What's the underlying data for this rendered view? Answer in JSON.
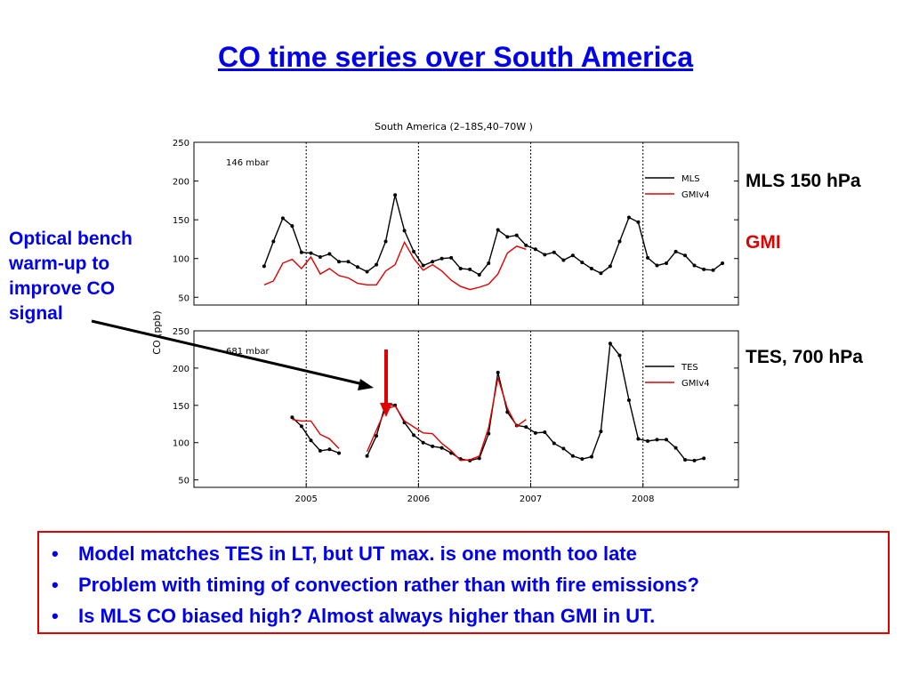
{
  "slide": {
    "title": "CO time series over South America",
    "annotation": "Optical bench warm-up to improve CO signal",
    "labels": {
      "mls": "MLS 150 hPa",
      "gmi": "GMI",
      "tes": "TES, 700 hPa"
    },
    "bullets": [
      "Model matches TES in LT, but UT max. is one month too late",
      "Problem with timing of convection rather than with fire emissions?",
      "Is MLS CO biased high?  Almost always higher than GMI in UT."
    ],
    "colors": {
      "title": "#0000ee",
      "gmi_label": "#e00000",
      "box_border": "#e00000",
      "mls_tes_line": "#000000",
      "gmi_line": "#e00000",
      "arrow_red": "#e00000"
    }
  },
  "chart_data": [
    {
      "type": "line",
      "title": "South America (2–18S,40–70W )",
      "panel_label": "146 mbar",
      "ylabel": "CO (ppb)",
      "ylim": [
        40,
        250
      ],
      "yticks": [
        50,
        100,
        150,
        200,
        250
      ],
      "xlim": [
        2004.0,
        2008.85
      ],
      "xticks": [
        2005,
        2006,
        2007,
        2008
      ],
      "vlines": [
        2005,
        2006,
        2007,
        2008
      ],
      "legend": "top-right",
      "series": [
        {
          "name": "MLS",
          "color": "#000000",
          "markers": true,
          "x": [
            2004.625,
            2004.708,
            2004.792,
            2004.875,
            2004.958,
            2005.042,
            2005.125,
            2005.208,
            2005.292,
            2005.375,
            2005.458,
            2005.542,
            2005.625,
            2005.708,
            2005.792,
            2005.875,
            2005.958,
            2006.042,
            2006.125,
            2006.208,
            2006.292,
            2006.375,
            2006.458,
            2006.542,
            2006.625,
            2006.708,
            2006.792,
            2006.875,
            2006.958,
            2007.042,
            2007.125,
            2007.208,
            2007.292,
            2007.375,
            2007.458,
            2007.542,
            2007.625,
            2007.708,
            2007.792,
            2007.875,
            2007.958,
            2008.042,
            2008.125,
            2008.208,
            2008.292,
            2008.375,
            2008.458,
            2008.542,
            2008.625,
            2008.708
          ],
          "y": [
            90,
            122,
            152,
            142,
            108,
            107,
            102,
            106,
            96,
            96,
            89,
            83,
            92,
            122,
            182,
            136,
            109,
            91,
            96,
            100,
            101,
            87,
            86,
            79,
            94,
            137,
            128,
            130,
            117,
            112,
            105,
            108,
            98,
            104,
            95,
            87,
            81,
            90,
            122,
            153,
            147,
            101,
            91,
            94,
            109,
            104,
            91,
            86,
            85,
            94
          ]
        },
        {
          "name": "GMIv4",
          "color": "#e00000",
          "markers": false,
          "x": [
            2004.625,
            2004.708,
            2004.792,
            2004.875,
            2004.958,
            2005.042,
            2005.125,
            2005.208,
            2005.292,
            2005.375,
            2005.458,
            2005.542,
            2005.625,
            2005.708,
            2005.792,
            2005.875,
            2005.958,
            2006.042,
            2006.125,
            2006.208,
            2006.292,
            2006.375,
            2006.458,
            2006.542,
            2006.625,
            2006.708,
            2006.792,
            2006.875,
            2006.958
          ],
          "y": [
            66,
            71,
            94,
            99,
            87,
            102,
            80,
            87,
            78,
            75,
            68,
            66,
            66,
            84,
            92,
            121,
            100,
            85,
            92,
            84,
            72,
            64,
            60,
            63,
            67,
            80,
            107,
            116,
            112
          ]
        }
      ]
    },
    {
      "type": "line",
      "panel_label": "681 mbar",
      "ylim": [
        40,
        250
      ],
      "yticks": [
        50,
        100,
        150,
        200,
        250
      ],
      "xlim": [
        2004.0,
        2008.85
      ],
      "xticks": [
        2005,
        2006,
        2007,
        2008
      ],
      "vlines": [
        2005,
        2006,
        2007,
        2008
      ],
      "legend": "top-right",
      "series": [
        {
          "name": "TES",
          "color": "#000000",
          "markers": true,
          "segments": [
            {
              "x": [
                2004.875,
                2004.958,
                2005.042,
                2005.125,
                2005.208,
                2005.292
              ],
              "y": [
                134,
                122,
                103,
                89,
                91,
                86
              ]
            },
            {
              "x": [
                2005.542,
                2005.625,
                2005.708,
                2005.792,
                2005.875,
                2005.958,
                2006.042,
                2006.125,
                2006.208,
                2006.292,
                2006.375,
                2006.458,
                2006.542,
                2006.625,
                2006.708,
                2006.792,
                2006.875,
                2006.958,
                2007.042,
                2007.125,
                2007.208,
                2007.292,
                2007.375,
                2007.458,
                2007.542,
                2007.625,
                2007.708,
                2007.792,
                2007.875,
                2007.958,
                2008.042,
                2008.125,
                2008.208,
                2008.292,
                2008.375,
                2008.458,
                2008.542
              ],
              "y": [
                82,
                109,
                152,
                150,
                127,
                110,
                100,
                95,
                93,
                86,
                78,
                76,
                79,
                112,
                194,
                141,
                123,
                121,
                113,
                114,
                99,
                92,
                82,
                78,
                81,
                115,
                233,
                217,
                157,
                105,
                102,
                104,
                104,
                93,
                77,
                76,
                79
              ]
            }
          ]
        },
        {
          "name": "GMIv4",
          "color": "#e00000",
          "markers": false,
          "segments": [
            {
              "x": [
                2004.875,
                2004.958,
                2005.042,
                2005.125,
                2005.208,
                2005.292
              ],
              "y": [
                131,
                129,
                129,
                111,
                105,
                92
              ]
            },
            {
              "x": [
                2005.542,
                2005.625,
                2005.708,
                2005.792,
                2005.875,
                2005.958,
                2006.042,
                2006.125,
                2006.208,
                2006.292,
                2006.375,
                2006.458,
                2006.542,
                2006.625,
                2006.708,
                2006.792,
                2006.875,
                2006.958
              ],
              "y": [
                88,
                117,
                145,
                149,
                129,
                121,
                113,
                112,
                99,
                89,
                76,
                77,
                82,
                120,
                187,
                146,
                122,
                131
              ]
            }
          ]
        }
      ]
    }
  ]
}
